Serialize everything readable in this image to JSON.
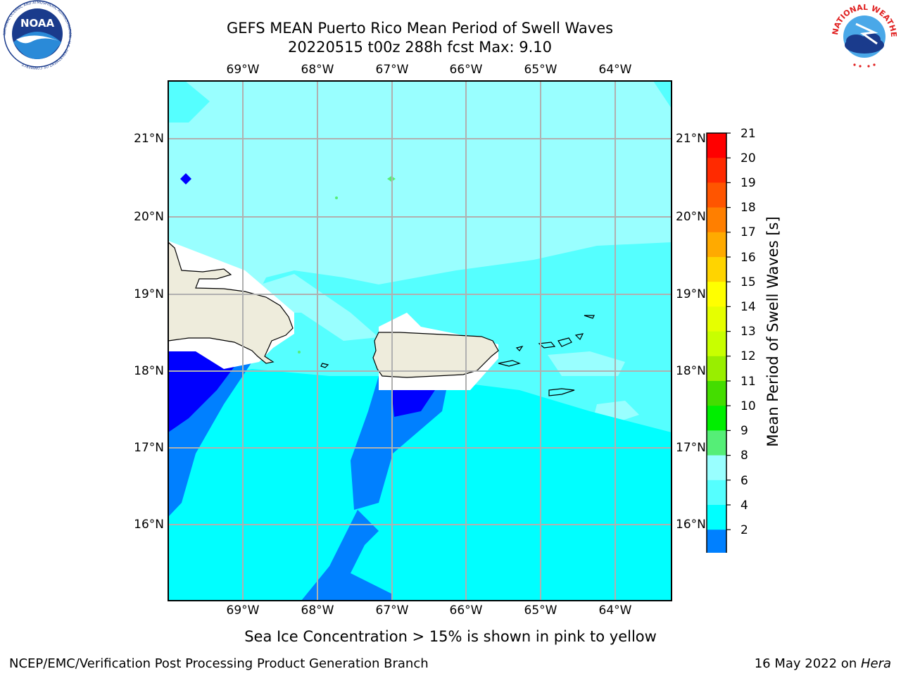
{
  "header": {
    "title_line1": "GEFS MEAN Puerto Rico Mean Period of Swell Waves",
    "title_line2": "20220515 t00z 288h fcst   Max: 9.10"
  },
  "logos": {
    "noaa": "NOAA",
    "noaa_ring": "NATIONAL OCEANIC AND ATMOSPHERIC ADMINISTRATION · U.S. DEPARTMENT OF COMMERCE",
    "nws_ring": "NATIONAL WEATHER SERVICE"
  },
  "map": {
    "lon_labels": [
      "69°W",
      "68°W",
      "67°W",
      "66°W",
      "65°W",
      "64°W"
    ],
    "lat_labels": [
      "21°N",
      "20°N",
      "19°N",
      "18°N",
      "17°N",
      "16°N"
    ],
    "gridlines": true,
    "land_color": "#eeecdc",
    "coast_color": "#000000",
    "grid_color": "#b0b0b0"
  },
  "colorbar": {
    "label": "Mean Period of Swell Waves [s]",
    "ticks": [
      "21",
      "20",
      "19",
      "18",
      "17",
      "16",
      "15",
      "14",
      "13",
      "12",
      "11",
      "10",
      "9",
      "8",
      "6",
      "4",
      "2"
    ],
    "colors_top_to_bottom": [
      "#ff0000",
      "#ff2a00",
      "#ff5500",
      "#ff7f00",
      "#ffaa00",
      "#ffd400",
      "#ffff00",
      "#e6ff00",
      "#c8ff00",
      "#99ee00",
      "#44dd00",
      "#00ee00",
      "#55ee77",
      "#99ffff",
      "#55ffff",
      "#00ffff",
      "#0080ff",
      "#0000ff"
    ],
    "extend": "min"
  },
  "footer": {
    "sea_ice_note": "Sea Ice Concentration > 15% is shown in pink to yellow",
    "credit": "NCEP/EMC/Verification Post Processing Product Generation Branch",
    "date_prefix": "16 May 2022 on ",
    "machine": "Hera"
  }
}
